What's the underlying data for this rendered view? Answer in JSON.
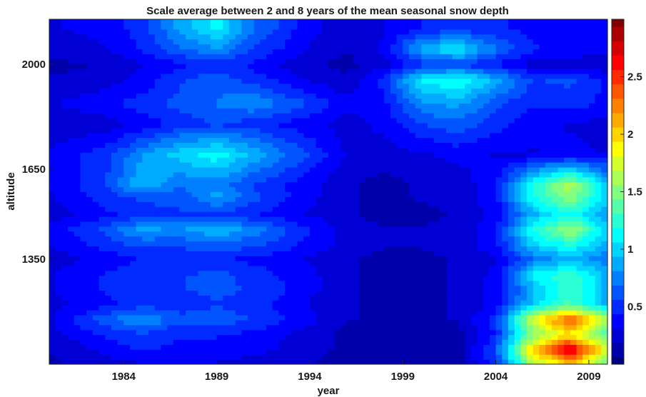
{
  "chart_data": {
    "type": "heatmap",
    "title": "Scale average between 2 and 8 years of the mean seasonal snow depth",
    "xlabel": "year",
    "ylabel": "altitude",
    "xlim": [
      1980,
      2010
    ],
    "ylim": [
      1000,
      2150
    ],
    "xticks": [
      1984,
      1989,
      1994,
      1999,
      2004,
      2009
    ],
    "yticks": [
      1350,
      1650,
      2000
    ],
    "colormap": "jet",
    "clim": [
      0,
      3
    ],
    "colorbar_ticks": [
      0.5,
      1,
      1.5,
      2,
      2.5
    ],
    "columns_year": [
      1980,
      1983,
      1985,
      1987,
      1989,
      1991,
      1994,
      1996,
      1998,
      2000,
      2002,
      2004,
      2006,
      2008,
      2010
    ],
    "rows": [
      {
        "altitude": 2120,
        "values": [
          0.3,
          0.35,
          0.5,
          0.85,
          1.1,
          0.7,
          0.35,
          0.25,
          0.3,
          0.45,
          0.5,
          0.45,
          0.4,
          0.4,
          0.35
        ]
      },
      {
        "altitude": 2050,
        "values": [
          0.25,
          0.3,
          0.45,
          0.65,
          0.8,
          0.55,
          0.3,
          0.2,
          0.35,
          0.9,
          1.1,
          0.7,
          0.45,
          0.4,
          0.35
        ]
      },
      {
        "altitude": 2000,
        "values": [
          0.15,
          0.2,
          0.3,
          0.4,
          0.5,
          0.4,
          0.2,
          0.15,
          0.25,
          0.5,
          0.55,
          0.4,
          0.25,
          0.25,
          0.2
        ]
      },
      {
        "altitude": 1950,
        "values": [
          0.2,
          0.25,
          0.35,
          0.55,
          0.65,
          0.5,
          0.3,
          0.2,
          0.5,
          1.1,
          1.2,
          0.9,
          0.55,
          0.6,
          0.4
        ]
      },
      {
        "altitude": 1870,
        "values": [
          0.3,
          0.4,
          0.5,
          0.6,
          0.7,
          0.8,
          0.55,
          0.35,
          0.4,
          0.8,
          0.85,
          0.6,
          0.45,
          0.5,
          0.4
        ]
      },
      {
        "altitude": 1800,
        "values": [
          0.2,
          0.25,
          0.35,
          0.5,
          0.55,
          0.5,
          0.35,
          0.25,
          0.35,
          0.55,
          0.65,
          0.5,
          0.35,
          0.3,
          0.25
        ]
      },
      {
        "altitude": 1700,
        "values": [
          0.35,
          0.5,
          0.8,
          1.0,
          1.15,
          0.9,
          0.55,
          0.3,
          0.25,
          0.3,
          0.35,
          0.3,
          0.3,
          0.35,
          0.3
        ]
      },
      {
        "altitude": 1600,
        "values": [
          0.3,
          0.55,
          0.95,
          0.7,
          0.75,
          0.55,
          0.35,
          0.2,
          0.15,
          0.2,
          0.25,
          0.4,
          1.2,
          1.65,
          1.0
        ]
      },
      {
        "altitude": 1560,
        "values": [
          0.3,
          0.5,
          0.6,
          0.6,
          0.85,
          0.6,
          0.35,
          0.2,
          0.15,
          0.2,
          0.25,
          0.4,
          1.2,
          1.55,
          1.0
        ]
      },
      {
        "altitude": 1500,
        "values": [
          0.25,
          0.4,
          0.5,
          0.55,
          0.55,
          0.45,
          0.3,
          0.2,
          0.15,
          0.15,
          0.2,
          0.35,
          0.9,
          1.2,
          0.8
        ]
      },
      {
        "altitude": 1450,
        "values": [
          0.35,
          0.6,
          0.85,
          0.8,
          0.95,
          0.75,
          0.45,
          0.25,
          0.2,
          0.2,
          0.25,
          0.4,
          1.2,
          1.6,
          1.0
        ]
      },
      {
        "altitude": 1400,
        "values": [
          0.3,
          0.5,
          0.6,
          0.6,
          0.65,
          0.6,
          0.4,
          0.25,
          0.2,
          0.2,
          0.25,
          0.4,
          1.0,
          1.2,
          0.9
        ]
      },
      {
        "altitude": 1350,
        "values": [
          0.25,
          0.35,
          0.45,
          0.45,
          0.45,
          0.4,
          0.3,
          0.2,
          0.15,
          0.15,
          0.2,
          0.3,
          0.7,
          0.9,
          0.7
        ]
      },
      {
        "altitude": 1300,
        "values": [
          0.3,
          0.45,
          0.55,
          0.55,
          0.6,
          0.5,
          0.35,
          0.2,
          0.15,
          0.15,
          0.2,
          0.35,
          1.1,
          1.3,
          0.9
        ]
      },
      {
        "altitude": 1250,
        "values": [
          0.3,
          0.45,
          0.55,
          0.55,
          0.6,
          0.55,
          0.35,
          0.2,
          0.15,
          0.15,
          0.2,
          0.35,
          0.9,
          1.3,
          0.9
        ]
      },
      {
        "altitude": 1200,
        "values": [
          0.25,
          0.4,
          0.5,
          0.5,
          0.55,
          0.5,
          0.3,
          0.2,
          0.15,
          0.15,
          0.2,
          0.35,
          1.0,
          1.35,
          0.9
        ]
      },
      {
        "altitude": 1150,
        "values": [
          0.3,
          0.65,
          0.85,
          0.6,
          0.65,
          0.55,
          0.35,
          0.2,
          0.15,
          0.15,
          0.2,
          0.5,
          1.8,
          2.45,
          1.6
        ]
      },
      {
        "altitude": 1100,
        "values": [
          0.25,
          0.45,
          0.55,
          0.45,
          0.45,
          0.4,
          0.25,
          0.15,
          0.1,
          0.1,
          0.15,
          0.45,
          1.5,
          1.9,
          1.3
        ]
      },
      {
        "altitude": 1050,
        "values": [
          0.2,
          0.35,
          0.45,
          0.4,
          0.4,
          0.35,
          0.25,
          0.15,
          0.1,
          0.1,
          0.15,
          0.6,
          2.0,
          2.8,
          1.8
        ]
      },
      {
        "altitude": 1000,
        "values": [
          0.15,
          0.25,
          0.3,
          0.3,
          0.3,
          0.25,
          0.2,
          0.1,
          0.1,
          0.1,
          0.15,
          0.5,
          1.6,
          2.0,
          1.4
        ]
      }
    ]
  }
}
